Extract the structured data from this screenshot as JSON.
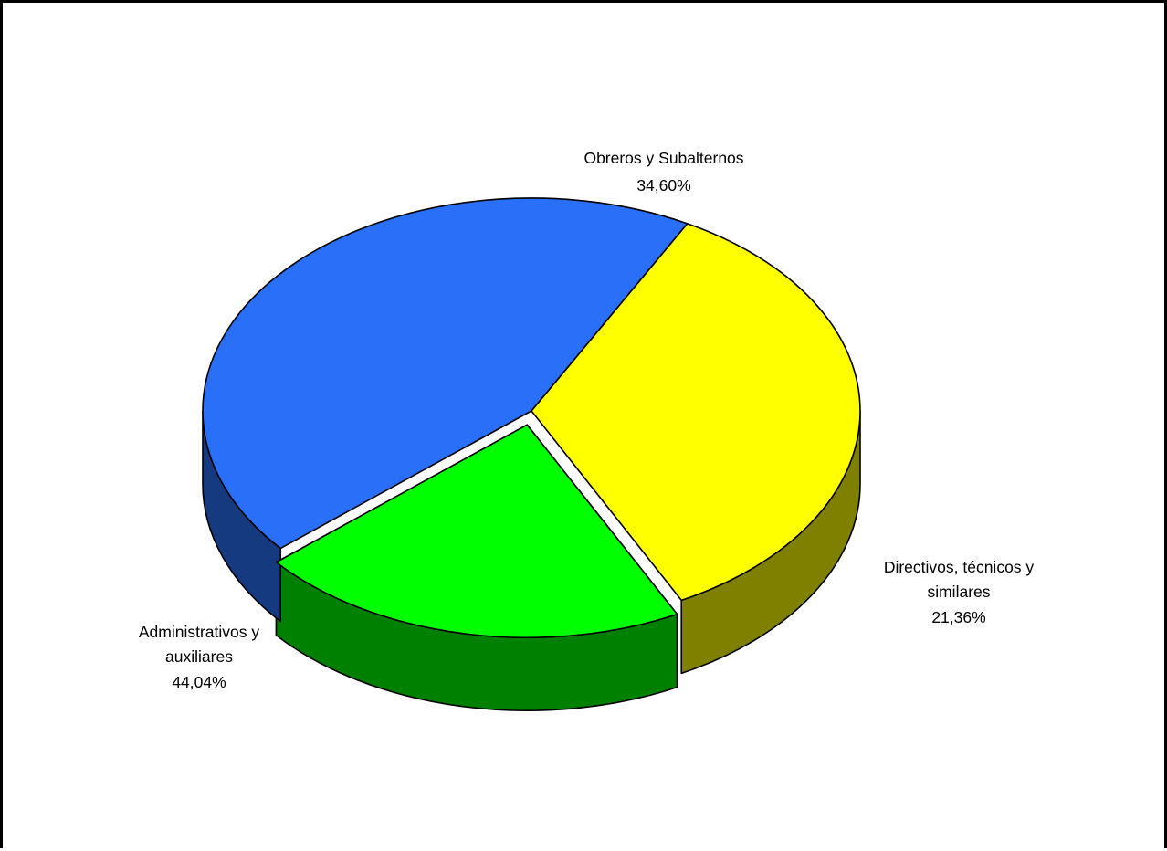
{
  "chart_data": {
    "type": "pie",
    "title": "",
    "slices": [
      {
        "label_lines": [
          "Obreros y Subalternos"
        ],
        "label": "Obreros y Subalternos",
        "value": 34.6,
        "value_text": "34,60%",
        "color": "#FFFF00",
        "side_color": "#808000"
      },
      {
        "label_lines": [
          "Directivos, técnicos y",
          "similares"
        ],
        "label": "Directivos, técnicos y similares",
        "value": 21.36,
        "value_text": "21,36%",
        "color": "#00FF00",
        "side_color": "#008000"
      },
      {
        "label_lines": [
          "Administrativos y",
          "auxiliares"
        ],
        "label": "Administrativos y auxiliares",
        "value": 44.04,
        "value_text": "44,04%",
        "color": "#2A6FF7",
        "side_color": "#163A80"
      }
    ],
    "exploded_slice": "Directivos, técnicos y similares",
    "style": "3d-pie",
    "legend": "none",
    "border_color": "#000000"
  }
}
